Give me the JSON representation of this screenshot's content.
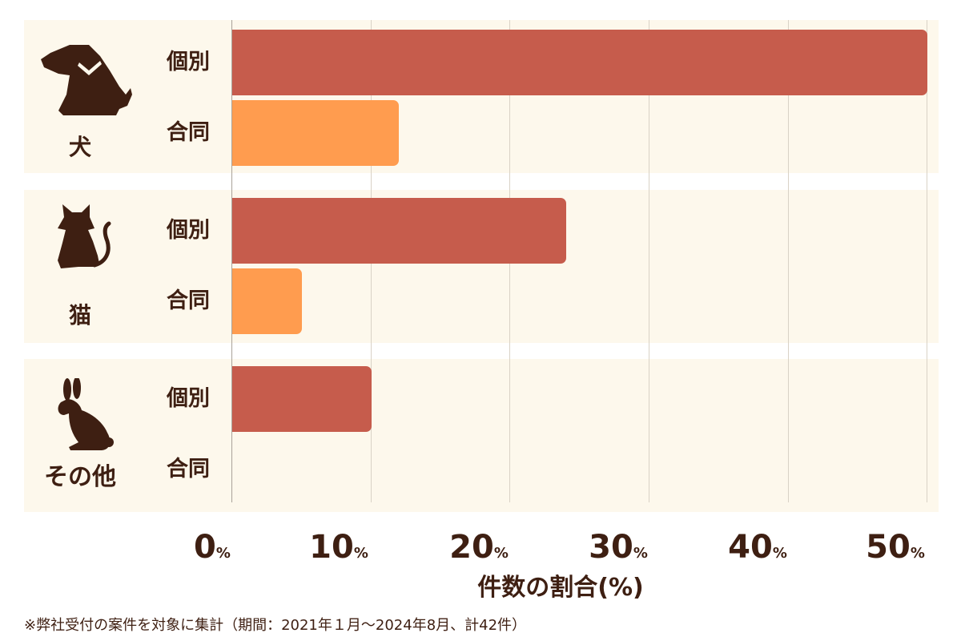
{
  "chart_data": {
    "type": "bar",
    "orientation": "horizontal",
    "title": "",
    "xlabel": "件数の割合(%)",
    "ylabel": "",
    "xlim": [
      0,
      50
    ],
    "x_ticks": [
      "0%",
      "10%",
      "20%",
      "30%",
      "40%",
      "50%"
    ],
    "grid": true,
    "categories": [
      "犬",
      "猫",
      "その他"
    ],
    "subcategories": [
      "個別",
      "合同"
    ],
    "series": [
      {
        "name": "個別",
        "color": "#c65c4c",
        "values": [
          50,
          24,
          10
        ]
      },
      {
        "name": "合同",
        "color": "#ff9c4f",
        "values": [
          12,
          5,
          0
        ]
      }
    ],
    "footnote": "※弊社受付の案件を対象に集計（期間：2021年１月～2024年8月、計42件）"
  },
  "groups": [
    {
      "label": "犬",
      "icon": "dog-icon",
      "individual_label": "個別",
      "joint_label": "合同"
    },
    {
      "label": "猫",
      "icon": "cat-icon",
      "individual_label": "個別",
      "joint_label": "合同"
    },
    {
      "label": "その他",
      "icon": "rabbit-icon",
      "individual_label": "個別",
      "joint_label": "合同"
    }
  ],
  "axis": {
    "ticks": [
      {
        "num": "0",
        "unit": "%"
      },
      {
        "num": "10",
        "unit": "%"
      },
      {
        "num": "20",
        "unit": "%"
      },
      {
        "num": "30",
        "unit": "%"
      },
      {
        "num": "40",
        "unit": "%"
      },
      {
        "num": "50",
        "unit": "%"
      }
    ],
    "title": "件数の割合(%)"
  },
  "footnote": "※弊社受付の案件を対象に集計（期間：2021年１月～2024年8月、計42件）",
  "colors": {
    "individual": "#c65c4c",
    "joint": "#ff9c4f",
    "panel": "#fdf8ec",
    "text": "#3e1f12"
  }
}
